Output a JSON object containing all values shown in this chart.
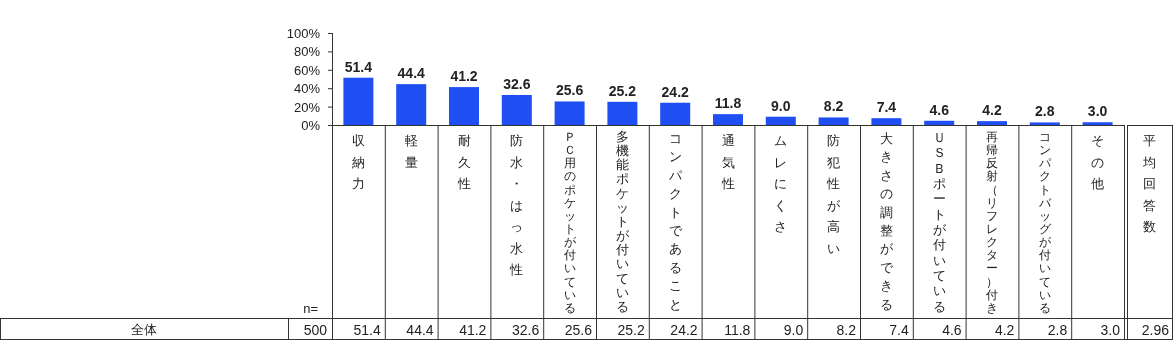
{
  "chart_data": {
    "type": "bar",
    "categories": [
      "収納力",
      "軽量",
      "耐久性",
      "防水・はっ水性",
      "ＰＣ用のポケットが付いている",
      "多機能ポケットが付いている",
      "コンパクトであること",
      "通気性",
      "ムレにくさ",
      "防犯性が高い",
      "大きさの調整ができる",
      "ＵＳＢポートが付いている",
      "再帰反射（リフレクター）付き",
      "コンパクトバッグが付いている",
      "その他"
    ],
    "values": [
      51.4,
      44.4,
      41.2,
      32.6,
      25.6,
      25.2,
      24.2,
      11.8,
      9.0,
      8.2,
      7.4,
      4.6,
      4.2,
      2.8,
      3.0
    ],
    "color": "#1f4ff2",
    "ylim": [
      0,
      100
    ],
    "yticks": [
      {
        "value": 0,
        "label": "0%"
      },
      {
        "value": 20,
        "label": "20%"
      },
      {
        "value": 40,
        "label": "40%"
      },
      {
        "value": 60,
        "label": "60%"
      },
      {
        "value": 80,
        "label": "80%"
      },
      {
        "value": 100,
        "label": "100%"
      }
    ],
    "data_labels": true,
    "value_labels": [
      "51.4",
      "44.4",
      "41.2",
      "32.6",
      "25.6",
      "25.2",
      "24.2",
      "11.8",
      "9.0",
      "8.2",
      "7.4",
      "4.6",
      "4.2",
      "2.8",
      "3.0"
    ],
    "annotations": [
      "n=",
      "全体",
      "500",
      "平均回答数",
      "2.96"
    ]
  }
}
